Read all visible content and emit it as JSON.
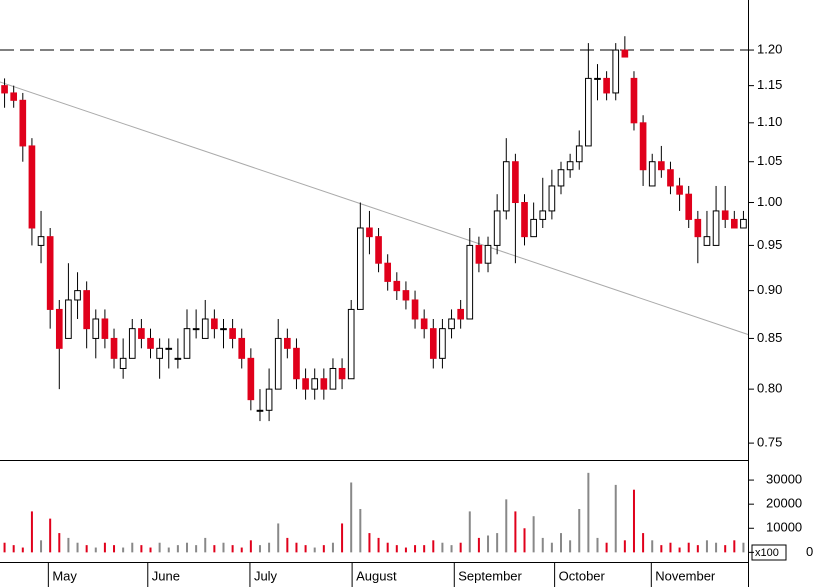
{
  "chart_data": {
    "type": "candlestick",
    "yscale": "log",
    "ylim": [
      0.735,
      1.274
    ],
    "yticks": [
      {
        "value": 0.75,
        "label": "0.75"
      },
      {
        "value": 0.8,
        "label": "0.80"
      },
      {
        "value": 0.85,
        "label": "0.85"
      },
      {
        "value": 0.9,
        "label": "0.90"
      },
      {
        "value": 0.95,
        "label": "0.95"
      },
      {
        "value": 1.0,
        "label": "1.00"
      },
      {
        "value": 1.05,
        "label": "1.05"
      },
      {
        "value": 1.1,
        "label": "1.10"
      },
      {
        "value": 1.15,
        "label": "1.15"
      },
      {
        "value": 1.2,
        "label": "1.20"
      }
    ],
    "xlim": [
      -0.5,
      81.5
    ],
    "xticks": [
      {
        "value": 4.8,
        "label": "May"
      },
      {
        "value": 15.7,
        "label": "June"
      },
      {
        "value": 26.9,
        "label": "July"
      },
      {
        "value": 38.1,
        "label": "August"
      },
      {
        "value": 49.3,
        "label": "September"
      },
      {
        "value": 60.3,
        "label": "October"
      },
      {
        "value": 70.9,
        "label": "November"
      }
    ],
    "up_color": "#ffffff",
    "down_color": "#e0001b",
    "open": [
      1.15,
      1.14,
      1.13,
      1.07,
      0.95,
      0.96,
      0.88,
      0.85,
      0.89,
      0.9,
      0.85,
      0.87,
      0.85,
      0.82,
      0.83,
      0.86,
      0.85,
      0.83,
      0.84,
      0.83,
      0.83,
      0.86,
      0.85,
      0.87,
      0.86,
      0.86,
      0.85,
      0.83,
      0.78,
      0.78,
      0.8,
      0.85,
      0.84,
      0.81,
      0.8,
      0.81,
      0.8,
      0.82,
      0.81,
      0.88,
      0.97,
      0.96,
      0.93,
      0.91,
      0.9,
      0.89,
      0.87,
      0.86,
      0.83,
      0.86,
      0.88,
      0.87,
      0.95,
      0.93,
      0.95,
      0.99,
      1.05,
      1.0,
      0.96,
      0.98,
      0.99,
      1.02,
      1.04,
      1.05,
      1.07,
      1.16,
      1.16,
      1.14,
      1.2,
      1.16,
      1.1,
      1.02,
      1.05,
      1.04,
      1.02,
      1.01,
      0.98,
      0.95,
      0.95,
      0.99,
      0.98,
      0.97
    ],
    "high": [
      1.16,
      1.15,
      1.14,
      1.08,
      0.99,
      0.97,
      0.89,
      0.93,
      0.92,
      0.91,
      0.88,
      0.88,
      0.86,
      0.85,
      0.87,
      0.87,
      0.86,
      0.85,
      0.85,
      0.85,
      0.88,
      0.88,
      0.89,
      0.88,
      0.87,
      0.87,
      0.86,
      0.84,
      0.8,
      0.82,
      0.87,
      0.86,
      0.85,
      0.82,
      0.82,
      0.82,
      0.83,
      0.83,
      0.89,
      1.0,
      0.99,
      0.97,
      0.94,
      0.92,
      0.91,
      0.9,
      0.88,
      0.87,
      0.87,
      0.88,
      0.89,
      0.97,
      0.96,
      0.96,
      1.01,
      1.08,
      1.06,
      1.01,
      1.0,
      1.03,
      1.04,
      1.05,
      1.06,
      1.09,
      1.21,
      1.18,
      1.17,
      1.21,
      1.22,
      1.17,
      1.11,
      1.06,
      1.07,
      1.05,
      1.03,
      1.02,
      0.99,
      0.99,
      1.02,
      1.02,
      0.99,
      0.99
    ],
    "low": [
      1.12,
      1.12,
      1.05,
      0.95,
      0.93,
      0.86,
      0.8,
      0.85,
      0.87,
      0.84,
      0.83,
      0.84,
      0.82,
      0.81,
      0.83,
      0.84,
      0.83,
      0.81,
      0.82,
      0.82,
      0.83,
      0.85,
      0.85,
      0.85,
      0.84,
      0.84,
      0.82,
      0.78,
      0.77,
      0.77,
      0.8,
      0.83,
      0.8,
      0.79,
      0.79,
      0.79,
      0.8,
      0.8,
      0.81,
      0.88,
      0.94,
      0.92,
      0.9,
      0.89,
      0.88,
      0.86,
      0.85,
      0.82,
      0.82,
      0.85,
      0.86,
      0.87,
      0.92,
      0.92,
      0.94,
      0.98,
      0.93,
      0.95,
      0.96,
      0.97,
      0.98,
      1.01,
      1.03,
      1.04,
      1.07,
      1.13,
      1.13,
      1.13,
      1.19,
      1.09,
      1.02,
      1.02,
      1.03,
      1.01,
      0.99,
      0.97,
      0.93,
      0.95,
      0.95,
      0.97,
      0.97,
      0.97
    ],
    "close": [
      1.14,
      1.13,
      1.07,
      0.97,
      0.96,
      0.88,
      0.84,
      0.89,
      0.9,
      0.86,
      0.87,
      0.85,
      0.83,
      0.83,
      0.86,
      0.85,
      0.84,
      0.84,
      0.84,
      0.83,
      0.86,
      0.86,
      0.87,
      0.86,
      0.86,
      0.85,
      0.83,
      0.79,
      0.78,
      0.8,
      0.85,
      0.84,
      0.81,
      0.8,
      0.81,
      0.8,
      0.82,
      0.81,
      0.88,
      0.97,
      0.96,
      0.93,
      0.91,
      0.9,
      0.89,
      0.87,
      0.86,
      0.83,
      0.86,
      0.87,
      0.87,
      0.95,
      0.93,
      0.95,
      0.99,
      1.05,
      1.0,
      0.96,
      0.98,
      0.99,
      1.02,
      1.04,
      1.05,
      1.07,
      1.16,
      1.16,
      1.14,
      1.2,
      1.19,
      1.1,
      1.04,
      1.05,
      1.04,
      1.02,
      1.01,
      0.98,
      0.96,
      0.96,
      0.99,
      0.98,
      0.97,
      0.98
    ],
    "resistance": 1.2,
    "trendline": {
      "x": [
        -0.5,
        81.5
      ],
      "y": [
        1.155,
        0.854
      ]
    },
    "volume": {
      "unit_label": "x100",
      "ylim": [
        -4000,
        37500
      ],
      "yticks": [
        0,
        10000,
        20000,
        30000
      ],
      "values": [
        4000,
        3000,
        2000,
        17000,
        5000,
        14000,
        8000,
        6000,
        4000,
        3000,
        2000,
        4000,
        3000,
        2000,
        4000,
        3000,
        2000,
        4000,
        2000,
        3000,
        4000,
        3000,
        6000,
        3000,
        4000,
        3000,
        2000,
        5000,
        3000,
        4000,
        12000,
        6000,
        4000,
        3000,
        2000,
        3000,
        4000,
        12000,
        29000,
        18000,
        8000,
        6000,
        4000,
        3000,
        2000,
        3000,
        3000,
        5000,
        4000,
        3000,
        4000,
        17000,
        6000,
        7000,
        8000,
        22000,
        17000,
        10000,
        15000,
        6000,
        4000,
        8000,
        5000,
        18000,
        33000,
        6000,
        4000,
        28000,
        5000,
        26000,
        8000,
        5000,
        3000,
        4000,
        2000,
        4000,
        3000,
        5000,
        4000,
        3000,
        5000,
        4000
      ]
    }
  }
}
